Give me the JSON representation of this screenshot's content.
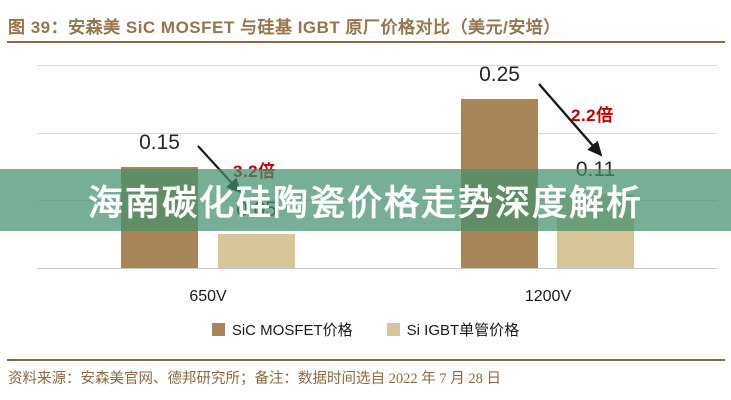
{
  "header": {
    "title": "图 39：安森美 SiC MOSFET 与硅基 IGBT 原厂价格对比（美元/安培）",
    "accent_color": "#8C6B43"
  },
  "overlay_banner": {
    "text": "海南碳化硅陶瓷价格走势深度解析",
    "bg_color": "rgba(65,144,108,0.72)",
    "text_color": "#ffffff"
  },
  "chart_data": {
    "type": "bar",
    "title": "安森美 SiC MOSFET 与硅基 IGBT 原厂价格对比",
    "unit": "美元/安培",
    "categories": [
      "650V",
      "1200V"
    ],
    "series": [
      {
        "name": "SiC MOSFET价格",
        "color": "#A88558",
        "values": [
          0.15,
          0.25
        ],
        "value_labels": [
          "0.15",
          "0.25"
        ]
      },
      {
        "name": "Si IGBT单管价格",
        "color": "#D6C599",
        "values": [
          0.05,
          0.11
        ],
        "value_labels": [
          "0.05",
          "0.11"
        ]
      }
    ],
    "annotations": [
      {
        "text": "3.2倍",
        "color": "#C00000",
        "refers_to": "650V SiC/IGBT 价格比"
      },
      {
        "text": "2.2倍",
        "color": "#C00000",
        "refers_to": "1200V SiC/IGBT 价格比"
      }
    ],
    "ylim": [
      0,
      0.32
    ],
    "gridline_values": [
      0.1,
      0.2,
      0.3
    ],
    "grid": true,
    "legend_position": "bottom",
    "value_label_color": "#262626",
    "gridline_color": "#D9D9D9"
  },
  "footer": {
    "text": "资料来源：安森美官网、德邦研究所；备注：数据时间选自 2022 年 7 月 28 日"
  }
}
